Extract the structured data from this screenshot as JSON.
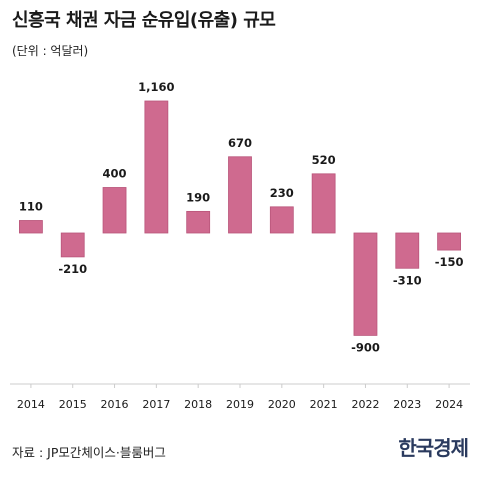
{
  "title": "신흥국 채권 자금 순유입(유출) 규모",
  "unit_label": "(단위 : 억달러)",
  "source": "자료 : JP모간체이스·블룸버그",
  "logo": "한국경제",
  "colors": {
    "bar": "#cf6a8f",
    "bar_stroke": "#b9557a",
    "axis": "#cccccc",
    "text": "#1a1a1a"
  },
  "chart_data": {
    "type": "bar",
    "categories": [
      "2014",
      "2015",
      "2016",
      "2017",
      "2018",
      "2019",
      "2020",
      "2021",
      "2022",
      "2023",
      "2024"
    ],
    "values": [
      110,
      -210,
      400,
      1160,
      190,
      670,
      230,
      520,
      -900,
      -310,
      -150
    ],
    "data_labels": [
      "110",
      "-210",
      "400",
      "1,160",
      "190",
      "670",
      "230",
      "520",
      "-900",
      "-310",
      "-150"
    ],
    "ylim": [
      -900,
      1160
    ],
    "grid": false,
    "legend": "none"
  }
}
